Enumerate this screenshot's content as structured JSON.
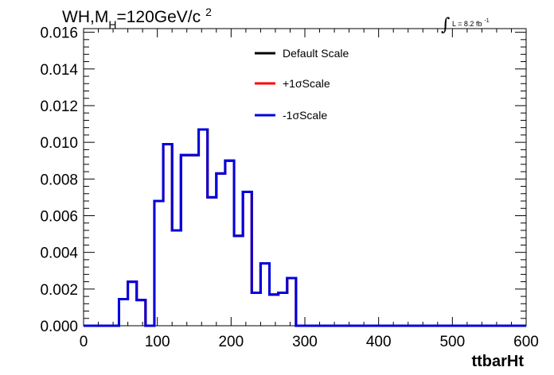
{
  "chart_data": {
    "type": "line",
    "title": "WH,M_H=120GeV/c^2",
    "title_parts": {
      "main": "WH,M",
      "sub": "H",
      "rest": "=120GeV/c",
      "sup": "2"
    },
    "annotation": {
      "integral": "∫",
      "text": "L = 8.2 fb",
      "sup": "-1"
    },
    "xlabel": "ttbarHt",
    "ylabel": "",
    "xlim": [
      0,
      600
    ],
    "ylim": [
      0,
      0.0162
    ],
    "x_ticks": [
      0,
      100,
      200,
      300,
      400,
      500,
      600
    ],
    "x_tick_labels": [
      "0",
      "100",
      "200",
      "300",
      "400",
      "500",
      "600"
    ],
    "y_ticks": [
      0,
      0.002,
      0.004,
      0.006,
      0.008,
      0.01,
      0.012,
      0.014,
      0.016
    ],
    "y_tick_labels": [
      "0.000",
      "0.002",
      "0.004",
      "0.006",
      "0.008",
      "0.010",
      "0.012",
      "0.014",
      "0.016"
    ],
    "grid": false,
    "legend_position": "top-center",
    "bin_edges": [
      0,
      12,
      24,
      36,
      48,
      60,
      72,
      84,
      96,
      108,
      120,
      132,
      144,
      156,
      168,
      180,
      192,
      204,
      216,
      228,
      240,
      252,
      264,
      276,
      288,
      300,
      312,
      324,
      336,
      348,
      360,
      372,
      384,
      396,
      408,
      420,
      432,
      444,
      456,
      468,
      480,
      492,
      504,
      516,
      528,
      540,
      552,
      564,
      576,
      588,
      600
    ],
    "series": [
      {
        "name": "Default Scale",
        "color": "#000000",
        "values": [
          0,
          0,
          0,
          0,
          0.00145,
          0.0024,
          0.0014,
          0,
          0.0068,
          0.0099,
          0.0052,
          0.0093,
          0.0093,
          0.0107,
          0.007,
          0.0083,
          0.009,
          0.0049,
          0.0073,
          0.0018,
          0.0034,
          0.0017,
          0.0018,
          0.0026,
          0,
          0,
          0,
          0,
          0,
          0,
          0,
          0,
          0,
          0,
          0,
          0,
          0,
          0,
          0,
          0,
          0,
          0,
          0,
          0,
          0,
          0,
          0,
          0,
          0,
          0
        ]
      },
      {
        "name": "+1σScale",
        "color": "#ff0000",
        "values": [
          0,
          0,
          0,
          0,
          0.00145,
          0.0024,
          0.0014,
          0,
          0.0068,
          0.0099,
          0.0052,
          0.0093,
          0.0093,
          0.0107,
          0.007,
          0.0083,
          0.009,
          0.0049,
          0.0073,
          0.0018,
          0.0034,
          0.0017,
          0.0018,
          0.0026,
          0,
          0,
          0,
          0,
          0,
          0,
          0,
          0,
          0,
          0,
          0,
          0,
          0,
          0,
          0,
          0,
          0,
          0,
          0,
          0,
          0,
          0,
          0,
          0,
          0,
          0
        ]
      },
      {
        "name": "-1σScale",
        "color": "#0000dd",
        "values": [
          0,
          0,
          0,
          0,
          0.00145,
          0.0024,
          0.0014,
          0,
          0.0068,
          0.0099,
          0.0052,
          0.0093,
          0.0093,
          0.0107,
          0.007,
          0.0083,
          0.009,
          0.0049,
          0.0073,
          0.0018,
          0.0034,
          0.0017,
          0.0018,
          0.0026,
          0,
          0,
          0,
          0,
          0,
          0,
          0,
          0,
          0,
          0,
          0,
          0,
          0,
          0,
          0,
          0,
          0,
          0,
          0,
          0,
          0,
          0,
          0,
          0,
          0,
          0
        ]
      }
    ]
  }
}
